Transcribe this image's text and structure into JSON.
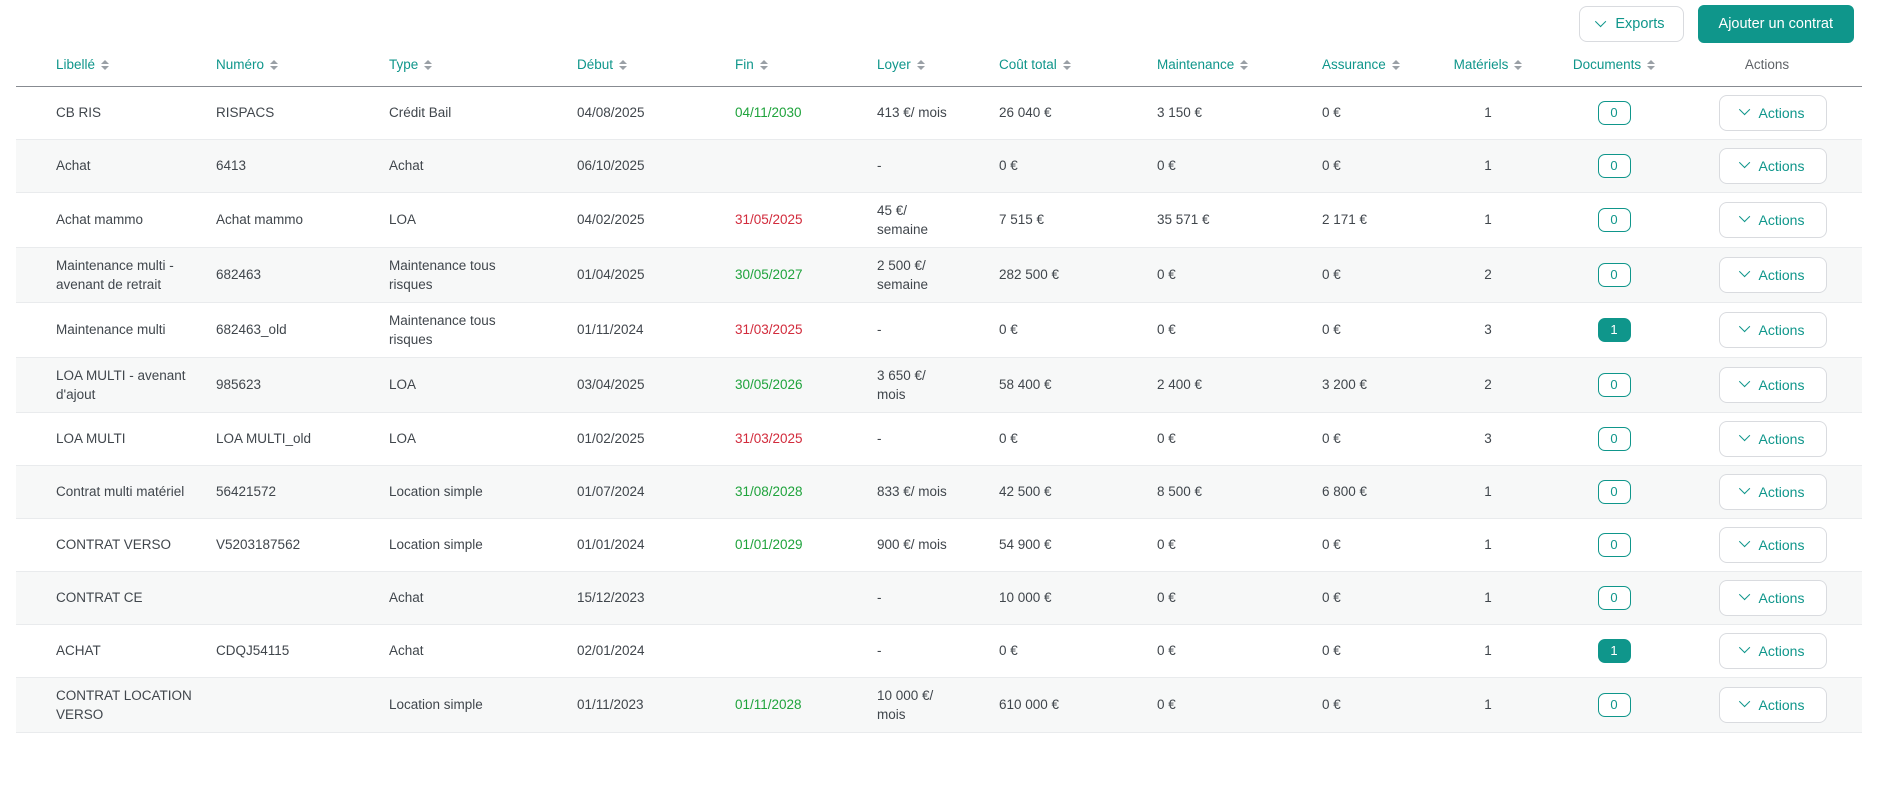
{
  "colors": {
    "accent": "#0f968b",
    "date_active": "#1fa33c",
    "date_expired": "#d22b3c"
  },
  "toolbar": {
    "exports_label": "Exports",
    "add_contract_label": "Ajouter un contrat"
  },
  "table": {
    "actions_label": "Actions",
    "headers": [
      {
        "label": "Libellé",
        "sortable": true
      },
      {
        "label": "Numéro",
        "sortable": true
      },
      {
        "label": "Type",
        "sortable": true
      },
      {
        "label": "Début",
        "sortable": true
      },
      {
        "label": "Fin",
        "sortable": true
      },
      {
        "label": "Loyer",
        "sortable": true
      },
      {
        "label": "Coût total",
        "sortable": true
      },
      {
        "label": "Maintenance",
        "sortable": true
      },
      {
        "label": "Assurance",
        "sortable": true
      },
      {
        "label": "Matériels",
        "sortable": true
      },
      {
        "label": "Documents",
        "sortable": true
      },
      {
        "label": "Actions",
        "sortable": false
      }
    ],
    "rows": [
      {
        "libelle": "CB RIS",
        "numero": "RISPACS",
        "type": "Crédit Bail",
        "debut": "04/08/2025",
        "fin": "04/11/2030",
        "fin_status": "active",
        "loyer": "413 €/ mois",
        "cout_total": "26 040 €",
        "maintenance": "3 150 €",
        "assurance": "0 €",
        "materiels": "1",
        "documents": "0",
        "documents_filled": false
      },
      {
        "libelle": "Achat",
        "numero": "6413",
        "type": "Achat",
        "debut": "06/10/2025",
        "fin": "",
        "fin_status": null,
        "loyer": "-",
        "cout_total": "0 €",
        "maintenance": "0 €",
        "assurance": "0 €",
        "materiels": "1",
        "documents": "0",
        "documents_filled": false
      },
      {
        "libelle": "Achat mammo",
        "numero": "Achat mammo",
        "type": "LOA",
        "debut": "04/02/2025",
        "fin": "31/05/2025",
        "fin_status": "expired",
        "loyer": "45 €/ semaine",
        "cout_total": "7 515 €",
        "maintenance": "35 571 €",
        "assurance": "2 171 €",
        "materiels": "1",
        "documents": "0",
        "documents_filled": false
      },
      {
        "libelle": "Maintenance multi - avenant de retrait",
        "numero": "682463",
        "type": "Maintenance tous risques",
        "debut": "01/04/2025",
        "fin": "30/05/2027",
        "fin_status": "active",
        "loyer": "2 500 €/ semaine",
        "cout_total": "282 500 €",
        "maintenance": "0 €",
        "assurance": "0 €",
        "materiels": "2",
        "documents": "0",
        "documents_filled": false
      },
      {
        "libelle": "Maintenance multi",
        "numero": "682463_old",
        "type": "Maintenance tous risques",
        "debut": "01/11/2024",
        "fin": "31/03/2025",
        "fin_status": "expired",
        "loyer": "-",
        "cout_total": "0 €",
        "maintenance": "0 €",
        "assurance": "0 €",
        "materiels": "3",
        "documents": "1",
        "documents_filled": true
      },
      {
        "libelle": "LOA MULTI - avenant d'ajout",
        "numero": "985623",
        "type": "LOA",
        "debut": "03/04/2025",
        "fin": "30/05/2026",
        "fin_status": "active",
        "loyer": "3 650 €/ mois",
        "cout_total": "58 400 €",
        "maintenance": "2 400 €",
        "assurance": "3 200 €",
        "materiels": "2",
        "documents": "0",
        "documents_filled": false
      },
      {
        "libelle": "LOA MULTI",
        "numero": "LOA MULTI_old",
        "type": "LOA",
        "debut": "01/02/2025",
        "fin": "31/03/2025",
        "fin_status": "expired",
        "loyer": "-",
        "cout_total": "0 €",
        "maintenance": "0 €",
        "assurance": "0 €",
        "materiels": "3",
        "documents": "0",
        "documents_filled": false
      },
      {
        "libelle": "Contrat multi matériel",
        "numero": "56421572",
        "type": "Location simple",
        "debut": "01/07/2024",
        "fin": "31/08/2028",
        "fin_status": "active",
        "loyer": "833 €/ mois",
        "cout_total": "42 500 €",
        "maintenance": "8 500 €",
        "assurance": "6 800 €",
        "materiels": "1",
        "documents": "0",
        "documents_filled": false
      },
      {
        "libelle": "CONTRAT VERSO",
        "numero": "V5203187562",
        "type": "Location simple",
        "debut": "01/01/2024",
        "fin": "01/01/2029",
        "fin_status": "active",
        "loyer": "900 €/ mois",
        "cout_total": "54 900 €",
        "maintenance": "0 €",
        "assurance": "0 €",
        "materiels": "1",
        "documents": "0",
        "documents_filled": false
      },
      {
        "libelle": "CONTRAT CE",
        "numero": "",
        "type": "Achat",
        "debut": "15/12/2023",
        "fin": "",
        "fin_status": null,
        "loyer": "-",
        "cout_total": "10 000 €",
        "maintenance": "0 €",
        "assurance": "0 €",
        "materiels": "1",
        "documents": "0",
        "documents_filled": false
      },
      {
        "libelle": "ACHAT",
        "numero": "CDQJ54115",
        "type": "Achat",
        "debut": "02/01/2024",
        "fin": "",
        "fin_status": null,
        "loyer": "-",
        "cout_total": "0 €",
        "maintenance": "0 €",
        "assurance": "0 €",
        "materiels": "1",
        "documents": "1",
        "documents_filled": true
      },
      {
        "libelle": "CONTRAT LOCATION VERSO",
        "numero": "",
        "type": "Location simple",
        "debut": "01/11/2023",
        "fin": "01/11/2028",
        "fin_status": "active",
        "loyer": "10 000 €/ mois",
        "cout_total": "610 000 €",
        "maintenance": "0 €",
        "assurance": "0 €",
        "materiels": "1",
        "documents": "0",
        "documents_filled": false
      }
    ]
  }
}
